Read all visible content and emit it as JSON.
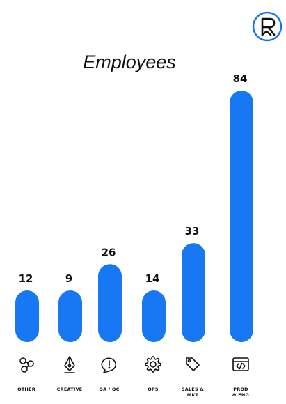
{
  "logo": {
    "icon": "bookmark-r-logo-icon",
    "text": "R",
    "color": "#1877e8"
  },
  "chart_data": {
    "type": "bar",
    "title": "Employees",
    "xlabel": "",
    "ylabel": "",
    "ylim": [
      0,
      84
    ],
    "grid": false,
    "legend": "none",
    "bar_color": "#1877f2",
    "categories": [
      {
        "label_lines": [
          "OTHER"
        ],
        "icon": "network-nodes-icon"
      },
      {
        "label_lines": [
          "CREATIVE"
        ],
        "icon": "pen-nib-icon"
      },
      {
        "label_lines": [
          "QA / QC"
        ],
        "icon": "speech-bubble-alert-icon"
      },
      {
        "label_lines": [
          "OPS"
        ],
        "icon": "gear-icon"
      },
      {
        "label_lines": [
          "SALES &",
          "MKT"
        ],
        "icon": "price-tag-icon"
      },
      {
        "label_lines": [
          "PROD",
          "& ENG"
        ],
        "icon": "code-window-icon"
      }
    ],
    "values": [
      12,
      9,
      26,
      14,
      33,
      84
    ]
  }
}
